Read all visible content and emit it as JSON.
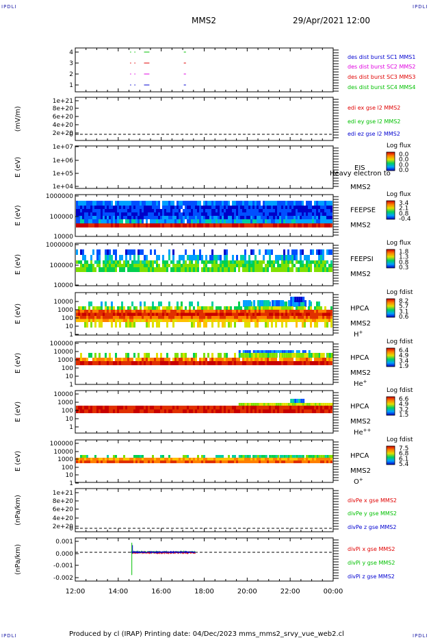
{
  "header": {
    "corner_tl": "IPDLI",
    "corner_tr": "IPDLI",
    "corner_bl": "IPDLI",
    "corner_br": "IPDLI",
    "spacecraft": "MMS2",
    "datetime": "29/Apr/2021 12:00"
  },
  "footer": {
    "text": "Produced by cl (IRAP)    Printing date: 04/Dec/2023    mms_mms2_srvy_vue_web2.cl"
  },
  "colors": {
    "red": "#e00000",
    "magenta": "#e000e0",
    "green": "#00c000",
    "blue": "#0000d0",
    "black": "#000000"
  },
  "chart_data": {
    "type": "heatmap",
    "x_axis": {
      "tick_labels": [
        "12:00",
        "14:00",
        "16:00",
        "18:00",
        "20:00",
        "22:00",
        "00:00"
      ],
      "range_hours": [
        12,
        24
      ]
    },
    "panels": [
      {
        "id": "burst",
        "type": "scatter",
        "ylabel": "",
        "ytick_labels": [
          "4",
          "3",
          "2",
          "1"
        ],
        "yvalues": [
          4,
          3,
          2,
          1
        ],
        "legend": [
          {
            "text": "des dist burst SC1 MMS1",
            "color": "#0000d0",
            "level": 1
          },
          {
            "text": "des dist burst SC2 MMS2",
            "color": "#e000e0",
            "level": 2
          },
          {
            "text": "des dist burst SC3 MMS3",
            "color": "#e00000",
            "level": 3
          },
          {
            "text": "des dist burst SC4 MMS4",
            "color": "#00c000",
            "level": 4
          }
        ],
        "segments_hours": [
          [
            14.55,
            14.6
          ],
          [
            14.75,
            14.8
          ],
          [
            15.2,
            15.45
          ],
          [
            17.05,
            17.15
          ]
        ]
      },
      {
        "id": "edi",
        "type": "line",
        "ylabel": "(mV/m)",
        "ytick_labels": [
          "1e+21",
          "8e+20",
          "6e+20",
          "4e+20",
          "2e+20",
          "0"
        ],
        "ylim": [
          0,
          1e+21
        ],
        "legend": [
          {
            "text": "edi ex gse l2 MMS2",
            "color": "#e00000"
          },
          {
            "text": "edi ey gse l2 MMS2",
            "color": "#00c000"
          },
          {
            "text": "edi ez gse l2 MMS2",
            "color": "#0000d0"
          }
        ]
      },
      {
        "id": "eis",
        "type": "heatmap",
        "ylabel": "E (eV)",
        "ytick_labels": [
          "1e+07",
          "1e+06",
          "1e+05",
          "1e+04"
        ],
        "ylim": [
          10000.0,
          10000000.0
        ],
        "instrument": "EIS",
        "overlay_text": "Heavy electron to",
        "sc": "MMS2",
        "cbar_title": "Log flux",
        "cbar_ticks": [
          "0.0",
          "0.0",
          "0.0",
          "0.0"
        ]
      },
      {
        "id": "feepse",
        "type": "heatmap",
        "ylabel": "E (eV)",
        "ytick_labels": [
          "1000000",
          "100000",
          "10000"
        ],
        "ylim": [
          10000,
          1000000
        ],
        "instrument": "FEEPSE",
        "sc": "MMS2",
        "cbar_title": "Log flux",
        "cbar_ticks": [
          "3.4",
          "2.1",
          "0.8",
          "-0.4"
        ]
      },
      {
        "id": "feepsi",
        "type": "heatmap",
        "ylabel": "E (eV)",
        "ytick_labels": [
          "1000000",
          "100000",
          "10000"
        ],
        "ylim": [
          10000,
          1000000
        ],
        "instrument": "FEEPSI",
        "sc": "MMS2",
        "cbar_title": "Log flux",
        "cbar_ticks": [
          "1.8",
          "1.3",
          "0.8",
          "0.3"
        ]
      },
      {
        "id": "hpca_h",
        "type": "heatmap",
        "ylabel": "E (eV)",
        "ytick_labels": [
          "10000",
          "1000",
          "100",
          "10",
          "1"
        ],
        "ylim": [
          1,
          30000
        ],
        "instrument": "HPCA",
        "sc": "MMS2",
        "species": "H",
        "species_sup": "+",
        "cbar_title": "Log fdist",
        "cbar_ticks": [
          "8.2",
          "5.7",
          "3.1",
          "0.6"
        ]
      },
      {
        "id": "hpca_he",
        "type": "heatmap",
        "ylabel": "E (eV)",
        "ytick_labels": [
          "100000",
          "10000",
          "1000",
          "100",
          "10",
          "1"
        ],
        "ylim": [
          1,
          100000
        ],
        "instrument": "HPCA",
        "sc": "MMS2",
        "species": "He",
        "species_sup": "+",
        "cbar_title": "Log fdist",
        "cbar_ticks": [
          "6.4",
          "4.9",
          "3.4",
          "1.9"
        ]
      },
      {
        "id": "hpca_hepp",
        "type": "heatmap",
        "ylabel": "E (eV)",
        "ytick_labels": [
          "10000",
          "1000",
          "100",
          "10",
          "1"
        ],
        "ylim": [
          1,
          30000
        ],
        "instrument": "HPCA",
        "sc": "MMS2",
        "species": "He",
        "species_sup": "++",
        "cbar_title": "Log fdist",
        "cbar_ticks": [
          "6.6",
          "4.9",
          "3.2",
          "1.5"
        ]
      },
      {
        "id": "hpca_o",
        "type": "heatmap",
        "ylabel": "E (eV)",
        "ytick_labels": [
          "100000",
          "10000",
          "1000",
          "100",
          "10",
          "1"
        ],
        "ylim": [
          1,
          100000
        ],
        "instrument": "HPCA",
        "sc": "MMS2",
        "species": "O",
        "species_sup": "+",
        "cbar_title": "Log fdist",
        "cbar_ticks": [
          "7.5",
          "6.8",
          "6.1",
          "5.4"
        ]
      },
      {
        "id": "divpe",
        "type": "line",
        "ylabel": "(nPa/km)",
        "ytick_labels": [
          "1e+21",
          "8e+20",
          "6e+20",
          "4e+20",
          "2e+20",
          "0"
        ],
        "ylim": [
          0,
          1e+21
        ],
        "legend": [
          {
            "text": "divPe x gse MMS2",
            "color": "#e00000"
          },
          {
            "text": "divPe y gse MMS2",
            "color": "#00c000"
          },
          {
            "text": "divPe z gse MMS2",
            "color": "#0000d0"
          }
        ]
      },
      {
        "id": "divpi",
        "type": "line",
        "ylabel": "(nPa/km)",
        "ytick_labels": [
          "0.001",
          "0.000",
          "-0.001",
          "-0.002"
        ],
        "ytick_values": [
          0.001,
          0.0,
          -0.001,
          -0.002
        ],
        "ylim": [
          -0.0024,
          0.0012
        ],
        "data_range_hours": [
          14.6,
          17.6
        ],
        "legend": [
          {
            "text": "divPi x gse MMS2",
            "color": "#e00000"
          },
          {
            "text": "divPi y gse MMS2",
            "color": "#00c000"
          },
          {
            "text": "divPi z gse MMS2",
            "color": "#0000d0"
          }
        ]
      }
    ]
  }
}
